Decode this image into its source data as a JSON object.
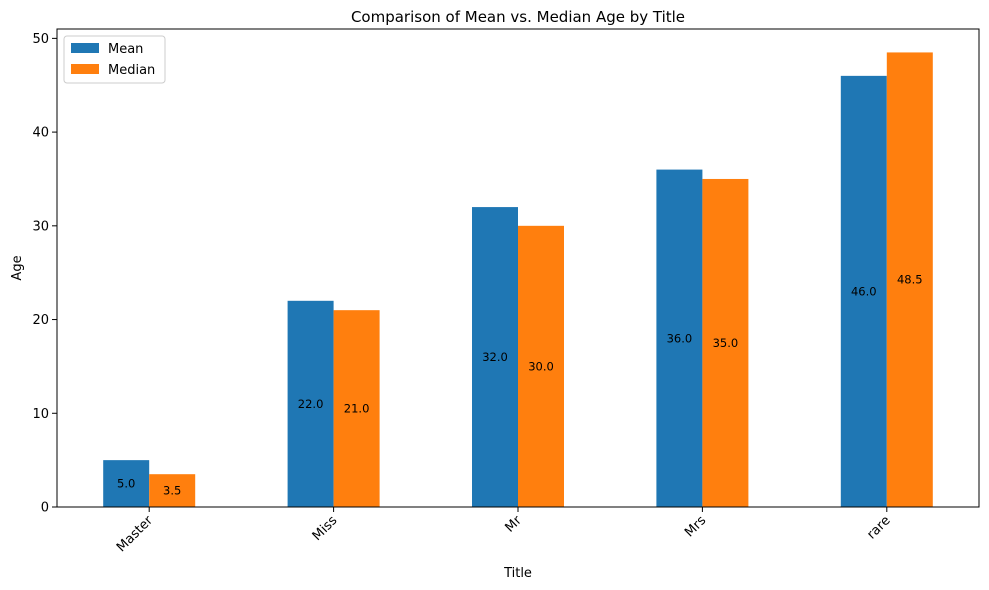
{
  "chart_data": {
    "type": "bar",
    "title": "Comparison of Mean vs. Median Age by Title",
    "xlabel": "Title",
    "ylabel": "Age",
    "categories": [
      "Master",
      "Miss",
      "Mr",
      "Mrs",
      "rare"
    ],
    "series": [
      {
        "name": "Mean",
        "values": [
          5.0,
          22.0,
          32.0,
          36.0,
          46.0
        ],
        "color": "#1f77b4"
      },
      {
        "name": "Median",
        "values": [
          3.5,
          21.0,
          30.0,
          35.0,
          48.5
        ],
        "color": "#ff7f0e"
      }
    ],
    "ylim": [
      0,
      51
    ],
    "yticks": [
      0,
      10,
      20,
      30,
      40,
      50
    ],
    "grid": false,
    "legend": "top-left",
    "bar_label_format": "one-decimal"
  }
}
